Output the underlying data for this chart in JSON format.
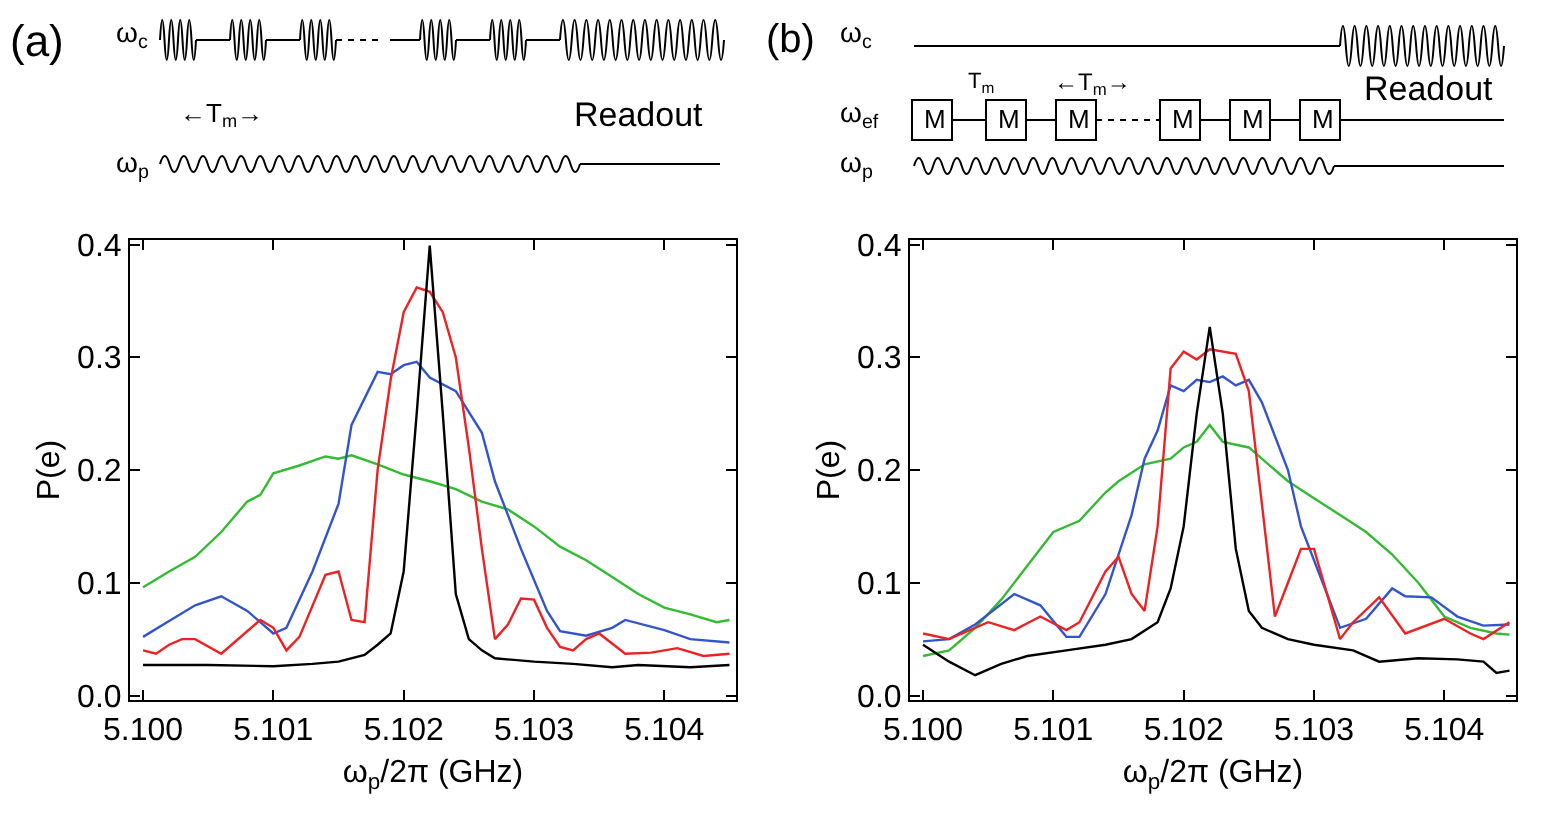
{
  "chart_data": [
    {
      "type": "line",
      "xlabel": "ω$_{p}$/2π (GHz)",
      "ylabel": "P(e)",
      "annotations": [
        "(a)",
        "ω$_{c}$",
        "←T$_{m}$→",
        "Readout",
        "ω$_{p}$"
      ],
      "xlim": [
        5.0999,
        5.10455
      ],
      "ylim": [
        -0.004,
        0.404
      ],
      "xticks": [
        {
          "value": 5.1,
          "label": "5.100"
        },
        {
          "value": 5.101,
          "label": "5.101"
        },
        {
          "value": 5.102,
          "label": "5.102"
        },
        {
          "value": 5.103,
          "label": "5.103"
        },
        {
          "value": 5.104,
          "label": "5.104"
        }
      ],
      "yticks": [
        {
          "value": 0,
          "label": "0.0"
        },
        0.1,
        0.2,
        0.3,
        0.4
      ],
      "marker": "none",
      "line_style": "solid",
      "series": [
        {
          "color": "#33bb33",
          "x": [
            5.1,
            5.1002,
            5.1004,
            5.1006,
            5.1008,
            5.1009,
            5.101,
            5.1012,
            5.1014,
            5.1015,
            5.1016,
            5.1018,
            5.102,
            5.1022,
            5.1024,
            5.1026,
            5.1028,
            5.103,
            5.1032,
            5.1034,
            5.1036,
            5.1038,
            5.104,
            5.1042,
            5.1044,
            5.1045
          ],
          "values": [
            0.096,
            0.11,
            0.123,
            0.145,
            0.172,
            0.178,
            0.197,
            0.204,
            0.212,
            0.21,
            0.213,
            0.205,
            0.196,
            0.19,
            0.183,
            0.172,
            0.165,
            0.15,
            0.132,
            0.12,
            0.105,
            0.09,
            0.078,
            0.072,
            0.065,
            0.067
          ]
        },
        {
          "color": "#3355cc",
          "x": [
            5.1,
            5.1002,
            5.1004,
            5.1006,
            5.1008,
            5.101,
            5.1011,
            5.1013,
            5.1015,
            5.1016,
            5.1018,
            5.1019,
            5.102,
            5.1021,
            5.1022,
            5.1024,
            5.1026,
            5.1027,
            5.1029,
            5.1031,
            5.1032,
            5.1034,
            5.1036,
            5.1037,
            5.104,
            5.1042,
            5.1045
          ],
          "values": [
            0.052,
            0.066,
            0.08,
            0.088,
            0.075,
            0.055,
            0.06,
            0.11,
            0.17,
            0.24,
            0.287,
            0.285,
            0.293,
            0.296,
            0.282,
            0.27,
            0.233,
            0.19,
            0.13,
            0.075,
            0.057,
            0.053,
            0.06,
            0.067,
            0.058,
            0.05,
            0.047
          ]
        },
        {
          "color": "#ee2222",
          "x": [
            5.1,
            5.1001,
            5.1002,
            5.1003,
            5.1004,
            5.1006,
            5.1009,
            5.101,
            5.1011,
            5.1012,
            5.1014,
            5.1015,
            5.1016,
            5.1017,
            5.1018,
            5.1019,
            5.102,
            5.1021,
            5.1022,
            5.1023,
            5.1024,
            5.1025,
            5.1026,
            5.1027,
            5.1028,
            5.1029,
            5.103,
            5.1031,
            5.1032,
            5.1033,
            5.1034,
            5.1035,
            5.1037,
            5.1039,
            5.1041,
            5.1043,
            5.1045
          ],
          "values": [
            0.04,
            0.037,
            0.045,
            0.05,
            0.05,
            0.037,
            0.067,
            0.06,
            0.04,
            0.052,
            0.107,
            0.11,
            0.067,
            0.065,
            0.2,
            0.28,
            0.34,
            0.362,
            0.358,
            0.34,
            0.3,
            0.22,
            0.13,
            0.05,
            0.063,
            0.086,
            0.085,
            0.06,
            0.043,
            0.04,
            0.05,
            0.055,
            0.037,
            0.038,
            0.042,
            0.035,
            0.037
          ]
        },
        {
          "color": "#000000",
          "x": [
            5.1,
            5.1005,
            5.101,
            5.1013,
            5.1015,
            5.1017,
            5.1018,
            5.1019,
            5.102,
            5.1021,
            5.1022,
            5.1023,
            5.1024,
            5.1025,
            5.1026,
            5.1027,
            5.103,
            5.1033,
            5.1036,
            5.1038,
            5.1042,
            5.1045
          ],
          "values": [
            0.027,
            0.027,
            0.026,
            0.028,
            0.03,
            0.036,
            0.045,
            0.055,
            0.11,
            0.25,
            0.399,
            0.25,
            0.09,
            0.05,
            0.04,
            0.033,
            0.03,
            0.028,
            0.025,
            0.027,
            0.025,
            0.027
          ]
        }
      ]
    },
    {
      "type": "line",
      "xlabel": "ω$_{p}$/2π (GHz)",
      "ylabel": "P(e)",
      "annotations": [
        "(b)",
        "ω$_{c}$",
        "T$_{m}$",
        "←T$_{m}$→",
        "ω$_{ef}$",
        "M",
        "M",
        "M",
        "M",
        "M",
        "M",
        "Readout",
        "ω$_{p}$"
      ],
      "xlim": [
        5.0999,
        5.10455
      ],
      "ylim": [
        -0.004,
        0.404
      ],
      "xticks": [
        {
          "value": 5.1,
          "label": "5.100"
        },
        {
          "value": 5.101,
          "label": "5.101"
        },
        {
          "value": 5.102,
          "label": "5.102"
        },
        {
          "value": 5.103,
          "label": "5.103"
        },
        {
          "value": 5.104,
          "label": "5.104"
        }
      ],
      "yticks": [
        {
          "value": 0,
          "label": "0.0"
        },
        0.1,
        0.2,
        0.3,
        0.4
      ],
      "marker": "none",
      "line_style": "solid",
      "series": [
        {
          "color": "#33bb33",
          "x": [
            5.1,
            5.1002,
            5.1004,
            5.1006,
            5.1008,
            5.101,
            5.1012,
            5.1014,
            5.1015,
            5.1017,
            5.1019,
            5.102,
            5.1021,
            5.1022,
            5.1023,
            5.1025,
            5.1027,
            5.1028,
            5.103,
            5.1032,
            5.1034,
            5.1036,
            5.1038,
            5.104,
            5.1042,
            5.1044,
            5.1045
          ],
          "values": [
            0.035,
            0.04,
            0.06,
            0.085,
            0.115,
            0.145,
            0.155,
            0.18,
            0.19,
            0.205,
            0.21,
            0.22,
            0.225,
            0.24,
            0.225,
            0.22,
            0.2,
            0.19,
            0.175,
            0.16,
            0.145,
            0.125,
            0.1,
            0.07,
            0.06,
            0.055,
            0.054
          ]
        },
        {
          "color": "#3355cc",
          "x": [
            5.1,
            5.1002,
            5.1004,
            5.1007,
            5.1009,
            5.1011,
            5.1012,
            5.1014,
            5.1016,
            5.1017,
            5.1018,
            5.1019,
            5.102,
            5.1021,
            5.1022,
            5.1023,
            5.1024,
            5.1025,
            5.1026,
            5.1028,
            5.1029,
            5.1031,
            5.1032,
            5.1034,
            5.1036,
            5.1037,
            5.1039,
            5.1041,
            5.1043,
            5.1045
          ],
          "values": [
            0.048,
            0.05,
            0.063,
            0.09,
            0.08,
            0.052,
            0.052,
            0.09,
            0.16,
            0.21,
            0.235,
            0.275,
            0.27,
            0.28,
            0.278,
            0.283,
            0.275,
            0.28,
            0.26,
            0.2,
            0.15,
            0.09,
            0.06,
            0.068,
            0.095,
            0.088,
            0.087,
            0.07,
            0.062,
            0.063
          ]
        },
        {
          "color": "#ee2222",
          "x": [
            5.1,
            5.1002,
            5.1005,
            5.1007,
            5.1009,
            5.1011,
            5.1012,
            5.1014,
            5.1015,
            5.1016,
            5.1017,
            5.1018,
            5.1019,
            5.102,
            5.1021,
            5.1022,
            5.1024,
            5.1025,
            5.1026,
            5.1027,
            5.1028,
            5.1029,
            5.103,
            5.1031,
            5.1032,
            5.1033,
            5.1035,
            5.1037,
            5.104,
            5.1042,
            5.1043,
            5.1045
          ],
          "values": [
            0.055,
            0.05,
            0.065,
            0.058,
            0.07,
            0.058,
            0.065,
            0.11,
            0.123,
            0.09,
            0.075,
            0.15,
            0.29,
            0.305,
            0.298,
            0.307,
            0.303,
            0.27,
            0.17,
            0.07,
            0.1,
            0.13,
            0.13,
            0.09,
            0.05,
            0.065,
            0.087,
            0.055,
            0.068,
            0.055,
            0.05,
            0.065
          ]
        },
        {
          "color": "#000000",
          "x": [
            5.1,
            5.1002,
            5.1004,
            5.1006,
            5.1008,
            5.1011,
            5.1014,
            5.1016,
            5.1018,
            5.1019,
            5.102,
            5.1021,
            5.1022,
            5.1023,
            5.1024,
            5.1025,
            5.1026,
            5.1028,
            5.103,
            5.1033,
            5.1035,
            5.1038,
            5.1041,
            5.1043,
            5.1044,
            5.1045
          ],
          "values": [
            0.045,
            0.03,
            0.018,
            0.028,
            0.035,
            0.04,
            0.045,
            0.05,
            0.065,
            0.095,
            0.15,
            0.25,
            0.327,
            0.25,
            0.13,
            0.075,
            0.06,
            0.05,
            0.045,
            0.04,
            0.03,
            0.033,
            0.032,
            0.03,
            0.02,
            0.022
          ]
        }
      ]
    }
  ]
}
